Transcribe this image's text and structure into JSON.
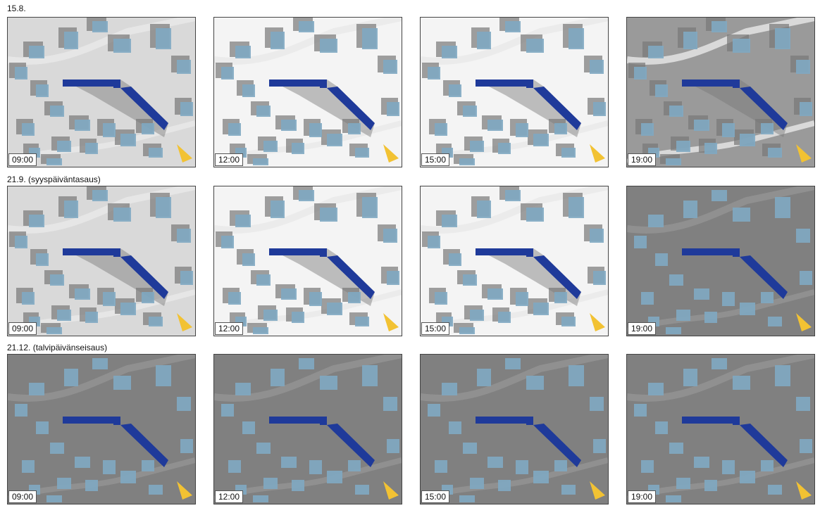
{
  "rows": [
    {
      "label": "15.8.",
      "panels": [
        {
          "time": "09:00",
          "background": "light-gray",
          "shadow": "gray"
        },
        {
          "time": "12:00",
          "background": "white",
          "shadow": "gray"
        },
        {
          "time": "15:00",
          "background": "white",
          "shadow": "gray"
        },
        {
          "time": "19:00",
          "background": "gray",
          "shadow": "gray"
        }
      ]
    },
    {
      "label": "21.9. (syyspäiväntasaus)",
      "panels": [
        {
          "time": "09:00",
          "background": "light-gray",
          "shadow": "gray"
        },
        {
          "time": "12:00",
          "background": "white",
          "shadow": "gray"
        },
        {
          "time": "15:00",
          "background": "white",
          "shadow": "gray"
        },
        {
          "time": "19:00",
          "background": "gray",
          "shadow": "full"
        }
      ]
    },
    {
      "label": "21.12. (talvipäivänseisaus)",
      "panels": [
        {
          "time": "09:00",
          "background": "gray",
          "shadow": "full"
        },
        {
          "time": "12:00",
          "background": "gray",
          "shadow": "full"
        },
        {
          "time": "15:00",
          "background": "gray",
          "shadow": "full"
        },
        {
          "time": "19:00",
          "background": "gray",
          "shadow": "full"
        }
      ]
    }
  ],
  "colors": {
    "building_existing": "#7fa9c2",
    "building_new": "#1f3a9a",
    "shadow": "#777777",
    "north_arrow": "#f2c233",
    "white_ground": "#f4f4f4",
    "light_ground": "#d9d9d9",
    "dark_ground": "#9a9a9a"
  }
}
